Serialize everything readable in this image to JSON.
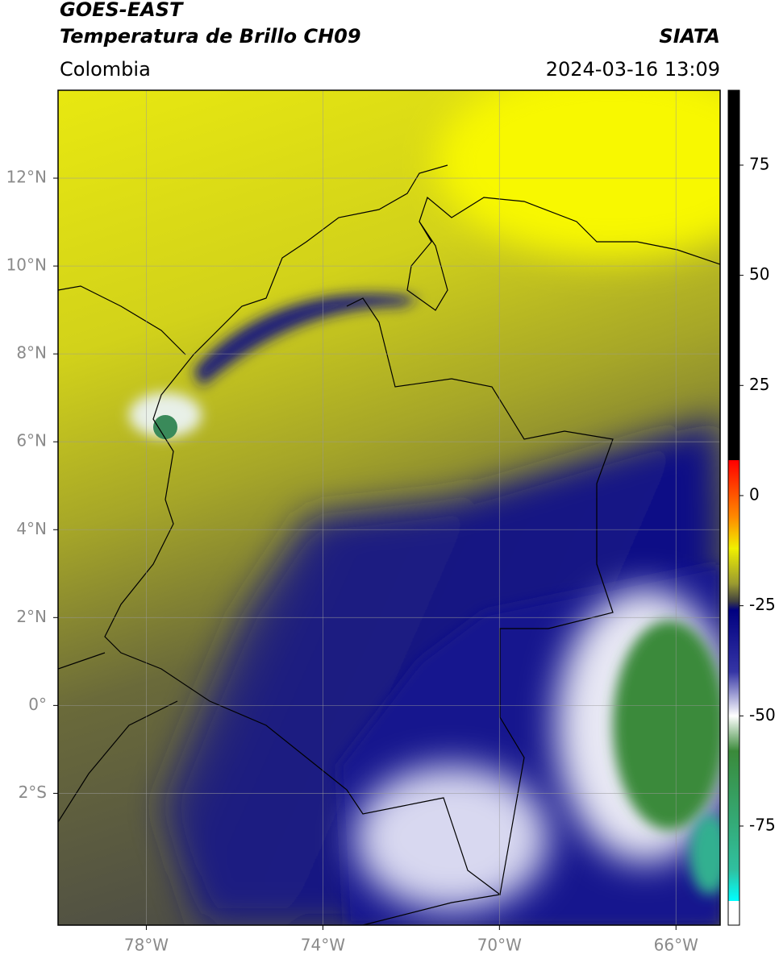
{
  "header": {
    "title": "GOES-EAST",
    "subtitle": "Temperatura de Brillo CH09",
    "source": "SIATA",
    "region": "Colombia",
    "datetime": "2024-03-16 13:09"
  },
  "map": {
    "xlim": [
      -80,
      -65
    ],
    "ylim": [
      -5,
      14
    ],
    "xticks": [
      {
        "value": -78,
        "label": "78°W"
      },
      {
        "value": -74,
        "label": "74°W"
      },
      {
        "value": -70,
        "label": "70°W"
      },
      {
        "value": -66,
        "label": "66°W"
      }
    ],
    "yticks": [
      {
        "value": -2,
        "label": "2°S"
      },
      {
        "value": 0,
        "label": "0°"
      },
      {
        "value": 2,
        "label": "2°N"
      },
      {
        "value": 4,
        "label": "4°N"
      },
      {
        "value": 6,
        "label": "6°N"
      },
      {
        "value": 8,
        "label": "8°N"
      },
      {
        "value": 10,
        "label": "10°N"
      },
      {
        "value": 12,
        "label": "12°N"
      }
    ],
    "grid": true
  },
  "colorbar": {
    "lim": [
      -97.5,
      92
    ],
    "ticks": [
      -75,
      -50,
      -25,
      0,
      25,
      50,
      75
    ],
    "stops": [
      {
        "value": 92,
        "color": "#000000"
      },
      {
        "value": 8,
        "color": "#000000"
      },
      {
        "value": 8,
        "color": "#ff0000"
      },
      {
        "value": -5,
        "color": "#ff8c00"
      },
      {
        "value": -12,
        "color": "#f0f000"
      },
      {
        "value": -20,
        "color": "#9a9a30"
      },
      {
        "value": -24,
        "color": "#404040"
      },
      {
        "value": -26,
        "color": "#000080"
      },
      {
        "value": -40,
        "color": "#3535a5"
      },
      {
        "value": -50,
        "color": "#ffffff"
      },
      {
        "value": -58,
        "color": "#3a8a3a"
      },
      {
        "value": -85,
        "color": "#30c0a0"
      },
      {
        "value": -92,
        "color": "#00ffff"
      },
      {
        "value": -92,
        "color": "#ffffff"
      },
      {
        "value": -97.5,
        "color": "#ffffff"
      }
    ]
  }
}
